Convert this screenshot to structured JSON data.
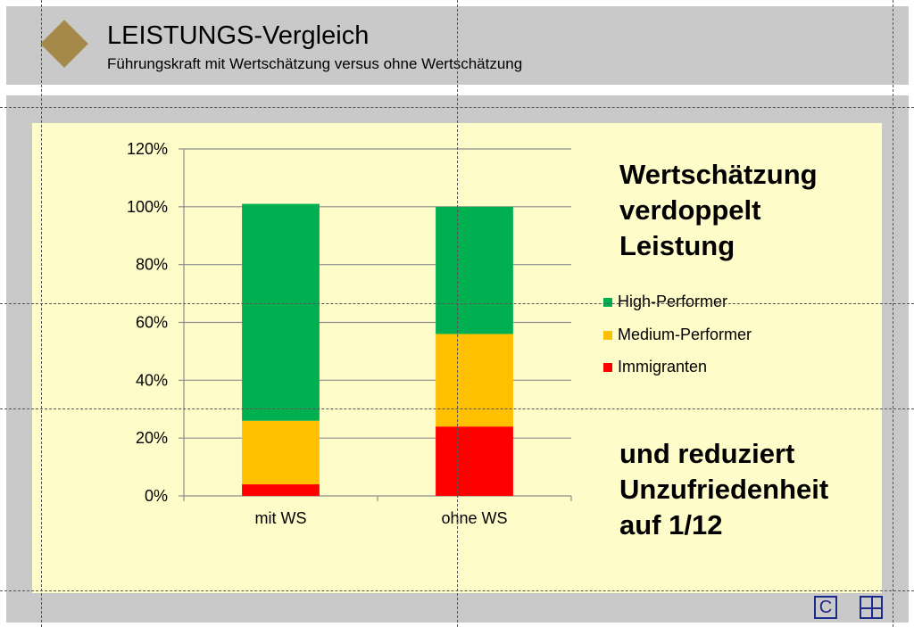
{
  "slide": {
    "title": "LEISTUNGS-Vergleich",
    "subtitle": "Führungskraft  mit Wertschätzung versus ohne Wertschätzung",
    "headline_lines": [
      "Wertschätzung",
      "verdoppelt",
      "Leistung"
    ],
    "conclusion_lines": [
      "und  reduziert",
      "Unzufriedenheit",
      "auf 1/12"
    ],
    "nav": {
      "copyright_label": "C",
      "grid_icon": "grid-icon"
    }
  },
  "colors": {
    "header_bg": "#c9c9c9",
    "panel_bg": "#fefdca",
    "diamond": "#a5894a",
    "high": "#00b050",
    "medium": "#ffc000",
    "immigranten": "#ff0000",
    "nav": "#1c2a8a"
  },
  "chart_data": {
    "type": "bar",
    "stacked": true,
    "categories": [
      "mit WS",
      "ohne WS"
    ],
    "series": [
      {
        "name": "High-Performer",
        "color": "#00b050",
        "values": [
          75,
          44
        ]
      },
      {
        "name": "Medium-Performer",
        "color": "#ffc000",
        "values": [
          22,
          32
        ]
      },
      {
        "name": "Immigranten",
        "color": "#ff0000",
        "values": [
          4,
          24
        ]
      }
    ],
    "ylim": [
      0,
      120
    ],
    "yticks": [
      0,
      20,
      40,
      60,
      80,
      100,
      120
    ],
    "ytick_labels": [
      "0%",
      "20%",
      "40%",
      "60%",
      "80%",
      "100%",
      "120%"
    ],
    "grid": true,
    "legend_position": "right"
  }
}
